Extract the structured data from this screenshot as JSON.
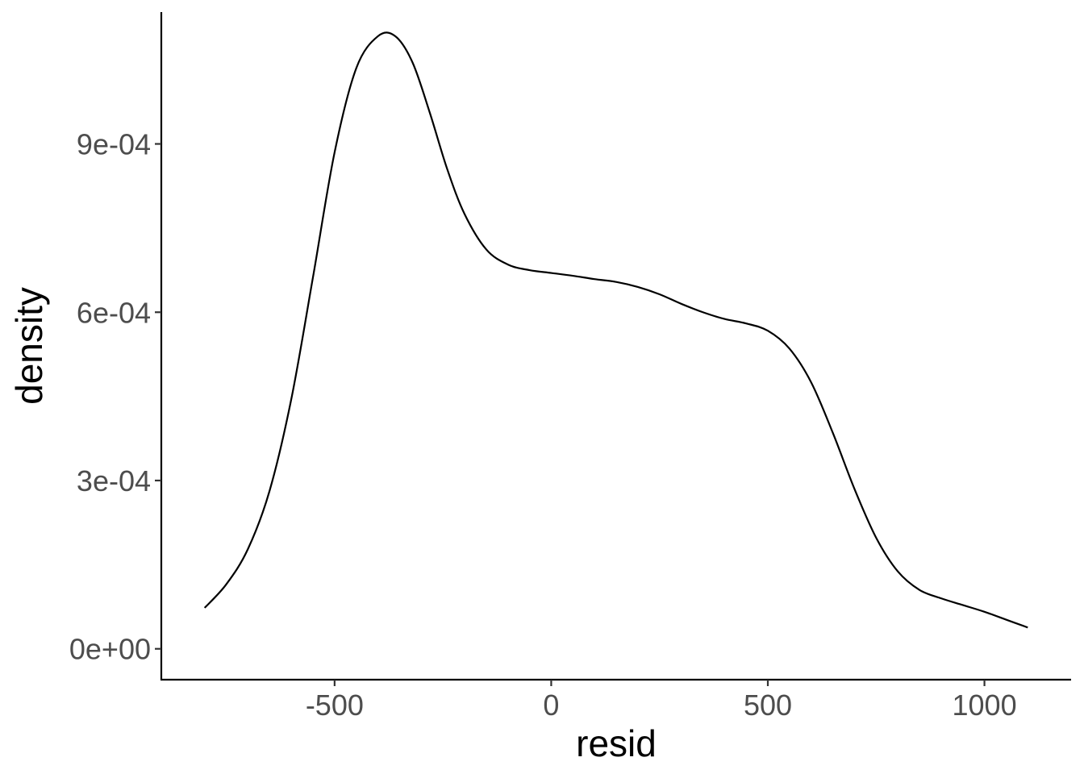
{
  "chart_data": {
    "type": "line",
    "xlabel": "resid",
    "ylabel": "density",
    "xlim": [
      -900,
      1200
    ],
    "ylim": [
      -5.5e-05,
      0.001135
    ],
    "x_ticks": [
      -500,
      0,
      500,
      1000
    ],
    "x_tick_labels": [
      "-500",
      "0",
      "500",
      "1000"
    ],
    "y_ticks": [
      0,
      0.0003,
      0.0006,
      0.0009
    ],
    "y_tick_labels": [
      "0e+00",
      "3e-04",
      "6e-04",
      "9e-04"
    ],
    "grid": false,
    "series": [
      {
        "x": [
          -800,
          -750,
          -700,
          -650,
          -600,
          -550,
          -500,
          -450,
          -400,
          -360,
          -320,
          -280,
          -240,
          -200,
          -150,
          -100,
          -50,
          0,
          50,
          100,
          150,
          200,
          250,
          300,
          350,
          400,
          450,
          500,
          550,
          600,
          650,
          700,
          750,
          800,
          850,
          900,
          950,
          1000,
          1050,
          1100
        ],
        "y": [
          7.3e-05,
          0.000115,
          0.000178,
          0.000282,
          0.000445,
          0.000662,
          0.000885,
          0.001035,
          0.001092,
          0.001092,
          0.001045,
          0.000955,
          0.000855,
          0.000775,
          0.000712,
          0.000685,
          0.000675,
          0.00067,
          0.000665,
          0.000659,
          0.000654,
          0.000645,
          0.000632,
          0.000615,
          0.0006,
          0.000588,
          0.00058,
          0.000567,
          0.000535,
          0.000475,
          0.000385,
          0.000285,
          0.000198,
          0.000138,
          0.000105,
          9e-05,
          7.8e-05,
          6.6e-05,
          5.2e-05,
          3.8e-05
        ],
        "color": "#000000"
      }
    ]
  }
}
